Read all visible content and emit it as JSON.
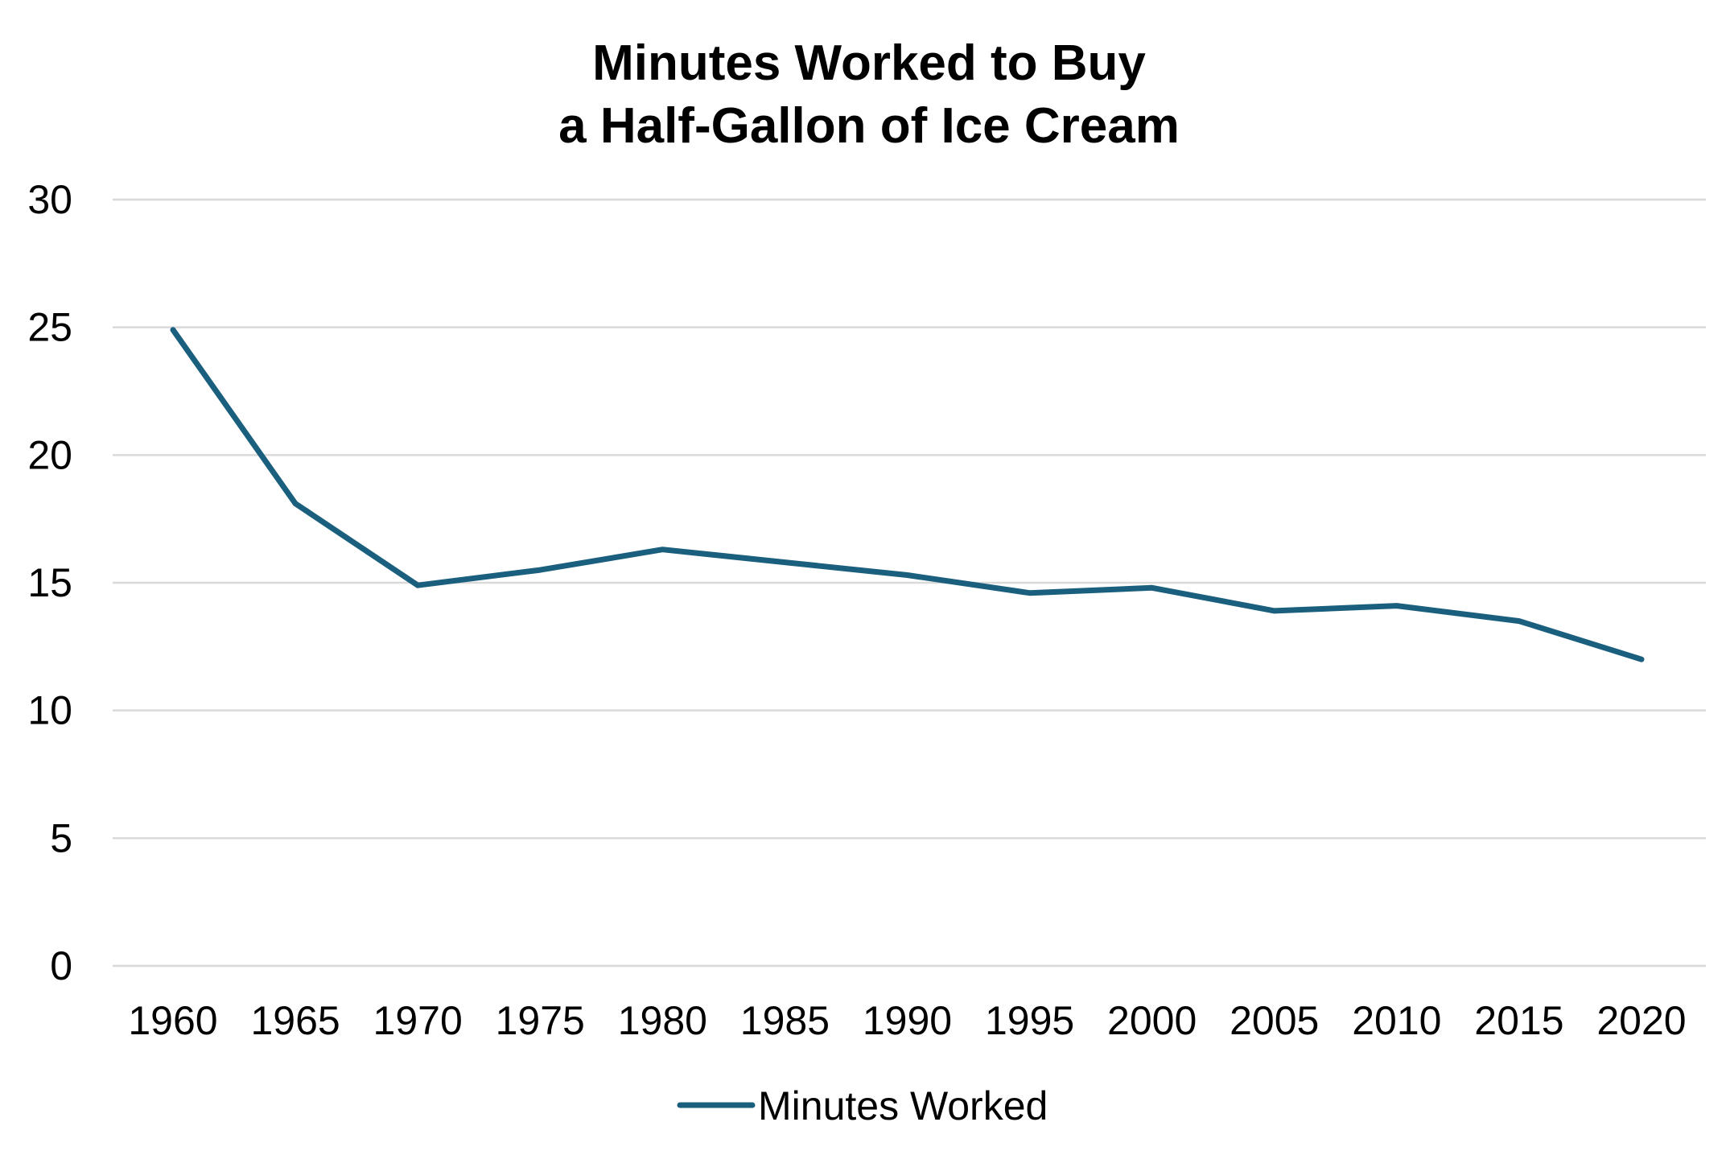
{
  "chart_data": {
    "type": "line",
    "title": [
      "Minutes Worked to Buy",
      "a Half-Gallon of Ice Cream"
    ],
    "xlabel": "",
    "ylabel": "",
    "x": [
      "1960",
      "1965",
      "1970",
      "1975",
      "1980",
      "1985",
      "1990",
      "1995",
      "2000",
      "2005",
      "2010",
      "2015",
      "2020"
    ],
    "series": [
      {
        "name": "Minutes Worked",
        "color": "#1b5f7e",
        "values": [
          24.9,
          18.1,
          14.9,
          15.5,
          16.3,
          15.8,
          15.3,
          14.6,
          14.8,
          13.9,
          14.1,
          13.5,
          12.0
        ]
      }
    ],
    "ylim": [
      0,
      30
    ],
    "yticks": [
      0,
      5,
      10,
      15,
      20,
      25,
      30
    ],
    "grid": true,
    "gridline_color": "#d9d9d9",
    "legend": "bottom-center"
  }
}
